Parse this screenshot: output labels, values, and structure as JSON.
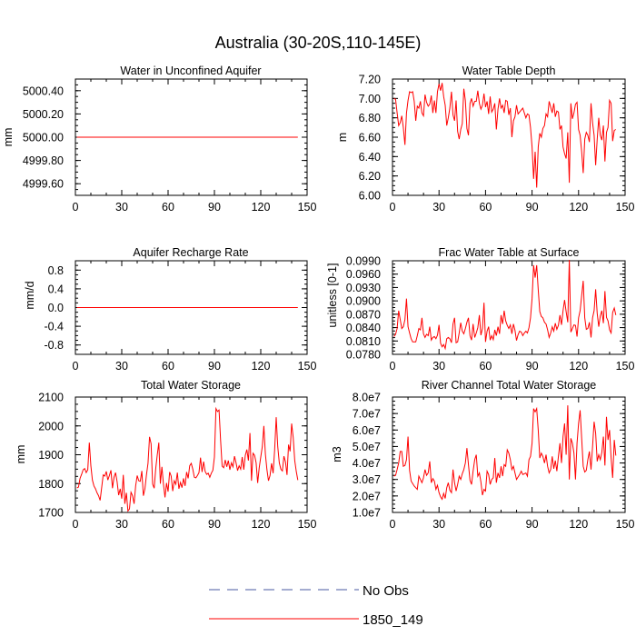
{
  "title": "Australia (30-20S,110-145E)",
  "legend": [
    {
      "label": "No Obs",
      "color": "#4a5aa0",
      "dash": true
    },
    {
      "label": "1850_149",
      "color": "#ff0000",
      "dash": false
    }
  ],
  "chart_data": [
    {
      "type": "line",
      "title": "Water in Unconfined Aquifer",
      "ylabel": "mm",
      "xlim": [
        0,
        150
      ],
      "ylim": [
        4999.5,
        5000.5
      ],
      "xticks": [
        0,
        30,
        60,
        90,
        120,
        150
      ],
      "yticks": [
        4999.6,
        4999.8,
        5000.0,
        5000.2,
        5000.4
      ],
      "ytick_labels": [
        "4999.60",
        "4999.80",
        "5000.00",
        "5000.20",
        "5000.40"
      ],
      "series": [
        {
          "name": "1850_149",
          "color": "#ff0000",
          "x_start": 1,
          "y": "constant:5000.0",
          "n": 144
        }
      ]
    },
    {
      "type": "line",
      "title": "Water Table Depth",
      "ylabel": "m",
      "xlim": [
        0,
        150
      ],
      "ylim": [
        6.0,
        7.2
      ],
      "xticks": [
        0,
        30,
        60,
        90,
        120,
        150
      ],
      "yticks": [
        6.0,
        6.2,
        6.4,
        6.6,
        6.8,
        7.0,
        7.2
      ],
      "ytick_labels": [
        "6.00",
        "6.20",
        "6.40",
        "6.60",
        "6.80",
        "7.00",
        "7.20"
      ],
      "series": [
        {
          "name": "1850_149",
          "color": "#ff0000",
          "x_start": 1,
          "y": [
            7.0,
            6.99,
            6.85,
            6.72,
            6.75,
            6.82,
            6.7,
            6.52,
            6.85,
            6.98,
            7.07,
            7.06,
            7.07,
            6.97,
            6.77,
            6.92,
            6.9,
            6.97,
            6.85,
            6.82,
            7.04,
            6.96,
            6.92,
            6.94,
            7.03,
            6.85,
            6.98,
            6.85,
            7.07,
            7.15,
            7.08,
            7.16,
            7.02,
            6.93,
            6.72,
            6.8,
            6.9,
            7.07,
            6.83,
            6.77,
            6.98,
            6.66,
            6.58,
            6.68,
            6.74,
            7.1,
            6.98,
            6.69,
            6.62,
            6.95,
            7.0,
            6.92,
            6.97,
            6.97,
            7.08,
            6.95,
            6.89,
            6.93,
            7.05,
            6.91,
            6.97,
            6.84,
            7.02,
            6.86,
            6.89,
            6.95,
            6.68,
            6.89,
            7.0,
            6.9,
            6.93,
            6.85,
            6.98,
            6.97,
            6.83,
            6.9,
            6.6,
            6.77,
            6.81,
            6.93,
            6.84,
            6.86,
            6.88,
            6.9,
            6.85,
            6.8,
            6.84,
            6.83,
            6.7,
            6.5,
            6.17,
            6.45,
            6.08,
            6.5,
            6.64,
            6.6,
            6.69,
            6.72,
            6.84,
            6.81,
            6.97,
            6.91,
            6.85,
            6.95,
            6.81,
            6.87,
            6.86,
            6.68,
            6.72,
            6.5,
            6.43,
            6.38,
            6.65,
            6.13,
            6.95,
            6.79,
            6.85,
            6.94,
            6.96,
            6.68,
            6.62,
            6.45,
            6.23,
            6.58,
            6.65,
            6.62,
            6.55,
            6.95,
            6.75,
            6.62,
            6.31,
            6.58,
            6.8,
            6.62,
            6.57,
            6.72,
            6.35,
            6.65,
            6.7,
            6.98,
            6.95,
            6.56,
            6.67,
            6.68
          ]
        }
      ]
    },
    {
      "type": "line",
      "title": "Aquifer Recharge Rate",
      "ylabel": "mm/d",
      "xlim": [
        0,
        150
      ],
      "ylim": [
        -1.0,
        1.0
      ],
      "xticks": [
        0,
        30,
        60,
        90,
        120,
        150
      ],
      "yticks": [
        -0.8,
        -0.4,
        0.0,
        0.4,
        0.8
      ],
      "ytick_labels": [
        "-0.8",
        "-0.4",
        "0.0",
        "0.4",
        "0.8"
      ],
      "series": [
        {
          "name": "1850_149",
          "color": "#ff0000",
          "x_start": 1,
          "y": "constant:0.0",
          "n": 144
        }
      ]
    },
    {
      "type": "line",
      "title": "Frac Water Table at Surface",
      "ylabel": "unitless [0-1]",
      "xlim": [
        0,
        150
      ],
      "ylim": [
        0.078,
        0.099
      ],
      "xticks": [
        0,
        30,
        60,
        90,
        120,
        150
      ],
      "yticks": [
        0.078,
        0.081,
        0.084,
        0.087,
        0.09,
        0.093,
        0.096,
        0.099
      ],
      "ytick_labels": [
        "0.0780",
        "0.0810",
        "0.0840",
        "0.0870",
        "0.0900",
        "0.0930",
        "0.0960",
        "0.0990"
      ],
      "series": [
        {
          "name": "1850_149",
          "color": "#ff0000",
          "x_start": 1,
          "y": [
            0.082,
            0.0825,
            0.0838,
            0.0878,
            0.0858,
            0.0838,
            0.0842,
            0.0858,
            0.0905,
            0.0842,
            0.0828,
            0.0815,
            0.0808,
            0.0808,
            0.0808,
            0.0822,
            0.0838,
            0.0835,
            0.0862,
            0.0826,
            0.0818,
            0.0825,
            0.0822,
            0.0842,
            0.0812,
            0.0818,
            0.082,
            0.0815,
            0.0823,
            0.0846,
            0.0805,
            0.0797,
            0.0802,
            0.0793,
            0.0815,
            0.0818,
            0.0815,
            0.0806,
            0.0848,
            0.0862,
            0.0806,
            0.0808,
            0.0828,
            0.0851,
            0.0832,
            0.0826,
            0.0838,
            0.0852,
            0.0862,
            0.0822,
            0.0812,
            0.0848,
            0.0818,
            0.0828,
            0.084,
            0.0868,
            0.0823,
            0.0838,
            0.0896,
            0.0808,
            0.0832,
            0.0842,
            0.0812,
            0.0822,
            0.0813,
            0.0835,
            0.0822,
            0.0842,
            0.0826,
            0.0868,
            0.0848,
            0.0878,
            0.0855,
            0.0845,
            0.0838,
            0.0846,
            0.0826,
            0.0848,
            0.0834,
            0.0811,
            0.0824,
            0.0832,
            0.083,
            0.0822,
            0.0828,
            0.0832,
            0.0828,
            0.084,
            0.0862,
            0.0905,
            0.098,
            0.0952,
            0.098,
            0.0925,
            0.0876,
            0.0865,
            0.0862,
            0.0852,
            0.0848,
            0.0835,
            0.0818,
            0.0828,
            0.0842,
            0.0832,
            0.085,
            0.0836,
            0.0845,
            0.0868,
            0.0846,
            0.0878,
            0.0902,
            0.0876,
            0.0852,
            0.0992,
            0.083,
            0.0838,
            0.0846,
            0.0845,
            0.082,
            0.0862,
            0.0878,
            0.0912,
            0.0945,
            0.0862,
            0.0836,
            0.0838,
            0.0852,
            0.0818,
            0.0862,
            0.0878,
            0.0926,
            0.0872,
            0.0842,
            0.0866,
            0.0878,
            0.085,
            0.0922,
            0.0863,
            0.0855,
            0.0835,
            0.0828,
            0.0874,
            0.0884,
            0.0868
          ]
        }
      ]
    },
    {
      "type": "line",
      "title": "Total Water Storage",
      "ylabel": "mm",
      "xlim": [
        0,
        150
      ],
      "ylim": [
        1700,
        2100
      ],
      "xticks": [
        0,
        30,
        60,
        90,
        120,
        150
      ],
      "yticks": [
        1700,
        1800,
        1900,
        2000,
        2100
      ],
      "ytick_labels": [
        "1700",
        "1800",
        "1900",
        "2000",
        "2100"
      ],
      "series": [
        {
          "name": "1850_149",
          "color": "#ff0000",
          "x_start": 1,
          "y": [
            1785,
            1788,
            1818,
            1832,
            1848,
            1852,
            1838,
            1848,
            1942,
            1862,
            1812,
            1792,
            1782,
            1768,
            1758,
            1742,
            1786,
            1830,
            1826,
            1842,
            1812,
            1828,
            1846,
            1784,
            1822,
            1838,
            1806,
            1760,
            1782,
            1748,
            1830,
            1730,
            1768,
            1705,
            1712,
            1770,
            1758,
            1730,
            1792,
            1828,
            1810,
            1808,
            1844,
            1758,
            1782,
            1830,
            1870,
            1962,
            1938,
            1798,
            1784,
            1852,
            1900,
            1942,
            1800,
            1858,
            1798,
            1752,
            1802,
            1772,
            1840,
            1826,
            1774,
            1810,
            1798,
            1838,
            1782,
            1804,
            1786,
            1818,
            1792,
            1840,
            1818,
            1862,
            1870,
            1850,
            1822,
            1820,
            1828,
            1838,
            1890,
            1840,
            1876,
            1842,
            1832,
            1836,
            1822,
            1836,
            1846,
            1892,
            2060,
            2050,
            2055,
            1950,
            1860,
            1855,
            1882,
            1858,
            1880,
            1848,
            1872,
            1858,
            1895,
            1872,
            1845,
            1862,
            1850,
            1892,
            1848,
            1898,
            1918,
            1880,
            1975,
            1810,
            1905,
            1898,
            1872,
            1802,
            1855,
            1892,
            1928,
            2000,
            1902,
            1848,
            1810,
            1828,
            1870,
            1836,
            1918,
            2030,
            1928,
            1872,
            1850,
            1844,
            1895,
            1875,
            1830,
            1935,
            1912,
            2008,
            1960,
            1880,
            1842,
            1812
          ]
        }
      ]
    },
    {
      "type": "line",
      "title": "River Channel Total Water Storage",
      "ylabel": "m3",
      "xlim": [
        0,
        150
      ],
      "ylim": [
        10000000,
        80000000
      ],
      "xticks": [
        0,
        30,
        60,
        90,
        120,
        150
      ],
      "yticks": [
        10000000,
        20000000,
        30000000,
        40000000,
        50000000,
        60000000,
        70000000,
        80000000
      ],
      "ytick_labels": [
        "1.0e7",
        "2.0e7",
        "3.0e7",
        "4.0e7",
        "5.0e7",
        "6.0e7",
        "7.0e7",
        "8.0e7"
      ],
      "series": [
        {
          "name": "1850_149",
          "color": "#ff0000",
          "x_start": 1,
          "y": [
            32000000,
            32500000,
            36000000,
            40000000,
            47000000,
            47000000,
            38000000,
            38500000,
            42000000,
            56000000,
            35500000,
            29000000,
            27500000,
            26000000,
            25000000,
            24000000,
            32000000,
            30000000,
            28000000,
            31000000,
            36000000,
            32500000,
            34000000,
            41000000,
            28000000,
            30500000,
            29000000,
            24000000,
            26500000,
            22000000,
            19500000,
            18000000,
            21500000,
            18500000,
            25000000,
            28000000,
            23500000,
            22000000,
            36000000,
            28000000,
            23000000,
            27000000,
            32000000,
            30000000,
            33500000,
            36000000,
            40000000,
            49000000,
            39000000,
            29500000,
            27000000,
            35000000,
            42000000,
            45000000,
            32000000,
            34000000,
            28500000,
            20500000,
            24000000,
            23000000,
            35000000,
            33000000,
            27000000,
            30000000,
            31000000,
            43000000,
            28000000,
            34000000,
            31000000,
            38000000,
            32000000,
            39000000,
            38000000,
            48000000,
            46000000,
            42000000,
            36000000,
            38000000,
            34000000,
            30000000,
            31500000,
            33000000,
            35000000,
            33000000,
            33500000,
            34000000,
            32000000,
            42000000,
            44000000,
            52000000,
            73000000,
            71000000,
            73000000,
            60000000,
            43000000,
            46000000,
            44000000,
            40000000,
            45000000,
            38000000,
            34000000,
            36000000,
            44000000,
            36500000,
            41500000,
            35000000,
            44000000,
            52000000,
            40000000,
            56000000,
            64000000,
            45000000,
            75000000,
            30000000,
            55000000,
            52000000,
            46000000,
            30000000,
            52000000,
            64000000,
            72000000,
            55000000,
            38000000,
            34500000,
            35500000,
            42000000,
            47000000,
            36000000,
            50000000,
            65000000,
            58000000,
            41000000,
            45000000,
            42000000,
            46500000,
            56000000,
            38500000,
            68000000,
            54000000,
            60000000,
            43000000,
            31000000,
            54000000,
            44500000
          ]
        }
      ]
    }
  ]
}
